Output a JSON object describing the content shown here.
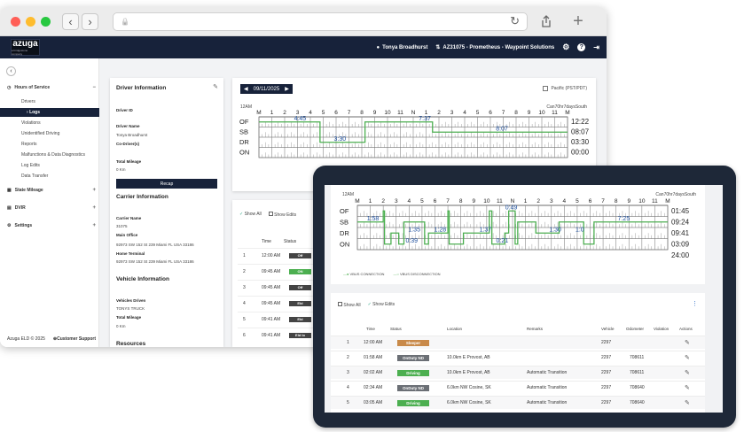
{
  "browser": {
    "back": "‹",
    "forward": "›",
    "lock": "🔒",
    "reload": "↻"
  },
  "app": {
    "logo_text": "azuga",
    "logo_tag": "a bridgestone company",
    "user": "Tonya Broadhurst",
    "account": "AZ31075 - Prometheus - Waypoint Solutions"
  },
  "sidebar": {
    "hours": "Hours of Service",
    "items": [
      "Drivers",
      "Violations",
      "Unidentified Driving",
      "Reports",
      "Malfunctions & Data Diagnostics",
      "Log Edits",
      "Data Transfer"
    ],
    "active": "Logs",
    "state_mileage": "State Mileage",
    "dvir": "DVIR",
    "settings": "Settings",
    "footer_left": "Azuga ELD © 2025",
    "footer_right": "Customer Support"
  },
  "driver_info": {
    "title": "Driver Information",
    "driver_id_label": "Driver ID",
    "driver_name_label": "Driver Name",
    "driver_name": "Tonya Broadhurst",
    "codrivers_label": "Co-Driver(s)",
    "mileage_label": "Total Mileage",
    "mileage": "0 Km",
    "recap": "Recap",
    "carrier_title": "Carrier Information",
    "carrier_name_label": "Carrier Name",
    "carrier_name": "31075",
    "main_office_label": "Main Office",
    "main_office": "92973 SW 152 St 239 Miami FL USA 33186",
    "home_terminal_label": "Home Terminal",
    "home_terminal": "92973 SW 152 St 239 Miami FL USA 33186",
    "vehicle_title": "Vehicle Information",
    "vehicles_driven_label": "Vehicles Driven",
    "vehicles_driven": "TONYS TRUCK",
    "vmileage_label": "Total Mileage",
    "vmileage": "0 Km",
    "resources_title": "Resources"
  },
  "log": {
    "date": "09/11/2025",
    "timezone": "Pacific (PST/PDT)",
    "cycle": "Can70hr7daysSouth",
    "hours_labels": [
      "M",
      "1",
      "2",
      "3",
      "4",
      "5",
      "6",
      "7",
      "8",
      "9",
      "10",
      "11",
      "N",
      "1",
      "2",
      "3",
      "4",
      "5",
      "6",
      "7",
      "8",
      "9",
      "10",
      "11",
      "M"
    ],
    "midnight": "12AM",
    "statuses": [
      "OF",
      "SB",
      "DR",
      "ON"
    ],
    "totals": [
      "12:22",
      "08:07",
      "03:30",
      "00:00"
    ],
    "callouts": [
      "4:45",
      "7:37",
      "3:30",
      "8:07"
    ]
  },
  "events_small": {
    "show_all": "Show All",
    "show_edits": "Show Edits",
    "col_time": "Time",
    "col_status": "Status",
    "rows": [
      {
        "n": "1",
        "time": "12:00 AM",
        "status": "Off"
      },
      {
        "n": "2",
        "time": "09:45 AM",
        "status": "ON"
      },
      {
        "n": "3",
        "time": "09:45 AM",
        "status": "Off"
      },
      {
        "n": "4",
        "time": "09:45 AM",
        "status": "Eld"
      },
      {
        "n": "5",
        "time": "09:41 AM",
        "status": "Eld"
      },
      {
        "n": "6",
        "time": "09:41 AM",
        "status": "Eld lo"
      }
    ]
  },
  "tablet": {
    "midnight": "12AM",
    "cycle": "Can70hr7daysSouth",
    "hours_labels": [
      "M",
      "1",
      "2",
      "3",
      "4",
      "5",
      "6",
      "7",
      "8",
      "9",
      "10",
      "11",
      "N",
      "1",
      "2",
      "3",
      "4",
      "5",
      "6",
      "7",
      "8",
      "9",
      "10",
      "11",
      "M"
    ],
    "statuses": [
      "OF",
      "SB",
      "DR",
      "ON"
    ],
    "totals": [
      "01:45",
      "09:24",
      "09:41",
      "03:09",
      "24:00"
    ],
    "callouts": [
      "1:58",
      "1:35",
      "1:28",
      "1:37",
      "0:49",
      "7:25",
      "1:30",
      "1:0",
      "0:39",
      "0:21"
    ],
    "legend1": "VBUS CONNECTION",
    "legend2": "VBUS DISCONNECTION",
    "show_all": "Show All",
    "show_edits": "Show Edits",
    "cols": {
      "time": "Time",
      "status": "Status",
      "location": "Location",
      "remarks": "Remarks",
      "vehicle": "Vehicle",
      "odometer": "Odometer",
      "violation": "Violation",
      "actions": "Actions"
    },
    "rows": [
      {
        "n": "1",
        "time": "12:00 AM",
        "status": "Sleeper",
        "color": "#c98a4a",
        "location": "",
        "remarks": "",
        "vehicle": "2297",
        "odometer": ""
      },
      {
        "n": "2",
        "time": "01:58 AM",
        "status": "OnDuty ND",
        "color": "#6b6f75",
        "location": "10.0km E Provost, AB",
        "remarks": "",
        "vehicle": "2297",
        "odometer": "708611"
      },
      {
        "n": "3",
        "time": "02:02 AM",
        "status": "Driving",
        "color": "#4caf50",
        "location": "10.0km E Provost, AB",
        "remarks": "Automatic Transition",
        "vehicle": "2297",
        "odometer": "708611"
      },
      {
        "n": "4",
        "time": "02:34 AM",
        "status": "OnDuty ND",
        "color": "#6b6f75",
        "location": "6.0km NW Cosine, SK",
        "remarks": "Automatic Transition",
        "vehicle": "2297",
        "odometer": "708640"
      },
      {
        "n": "5",
        "time": "03:05 AM",
        "status": "Driving",
        "color": "#4caf50",
        "location": "6.0km NW Cosine, SK",
        "remarks": "Automatic Transition",
        "vehicle": "2297",
        "odometer": "708640"
      }
    ]
  }
}
